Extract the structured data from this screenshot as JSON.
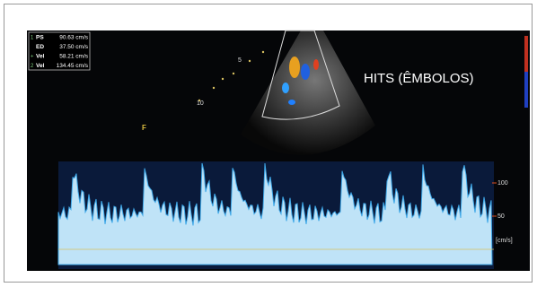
{
  "measurements": [
    {
      "marker": "1",
      "label": "PS",
      "value": "90.63 cm/s"
    },
    {
      "label": "ED",
      "value": "37.50 cm/s"
    },
    {
      "marker": "+",
      "label": "Vel",
      "value": "58.21 cm/s"
    },
    {
      "marker": "2",
      "label": "Vel",
      "value": "134.45 cm/s"
    }
  ],
  "annotation": "HITS (ÊMBOLOS)",
  "depth_marks": [
    "5",
    "10"
  ],
  "focus_label": "F",
  "velocity_scale": {
    "ticks": [
      "100",
      "50"
    ],
    "unit": "[cm/s]"
  }
}
